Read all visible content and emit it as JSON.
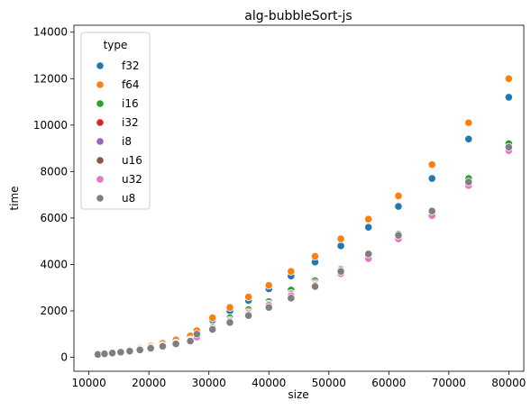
{
  "chart_data": {
    "type": "scatter",
    "title": "alg-bubbleSort-js",
    "xlabel": "size",
    "ylabel": "time",
    "xlim": [
      7500,
      82500
    ],
    "ylim": [
      -600,
      14300
    ],
    "x_ticks": [
      10000,
      20000,
      30000,
      40000,
      50000,
      60000,
      70000,
      80000
    ],
    "y_ticks": [
      0,
      2000,
      4000,
      6000,
      8000,
      10000,
      12000,
      14000
    ],
    "grid": false,
    "legend": {
      "title": "type",
      "placement": "top-left"
    },
    "colors": {
      "f32": "#1f77b4",
      "f64": "#ff7f0e",
      "i16": "#2ca02c",
      "i32": "#d62728",
      "i8": "#9467bd",
      "u16": "#8c564b",
      "u32": "#e377c2",
      "u8": "#7f7f7f"
    },
    "x": [
      11500,
      12600,
      13900,
      15300,
      16800,
      18500,
      20300,
      22300,
      24500,
      26900,
      28000,
      30600,
      33500,
      36600,
      40000,
      43700,
      47700,
      52000,
      56600,
      61600,
      67200,
      73300,
      80000
    ],
    "series": [
      {
        "name": "f32",
        "values": [
          135,
          165,
          205,
          250,
          305,
          370,
          455,
          560,
          680,
          830,
          1000,
          1600,
          2000,
          2450,
          2950,
          3500,
          4100,
          4800,
          5600,
          6500,
          7700,
          9400,
          11200
        ]
      },
      {
        "name": "f64",
        "values": [
          140,
          170,
          210,
          255,
          320,
          390,
          480,
          600,
          750,
          920,
          1150,
          1700,
          2150,
          2600,
          3100,
          3700,
          4350,
          5100,
          5950,
          6950,
          8300,
          10100,
          12000
        ]
      },
      {
        "name": "i16",
        "values": [
          135,
          160,
          195,
          235,
          285,
          345,
          420,
          510,
          620,
          760,
          920,
          1300,
          1700,
          2050,
          2400,
          2900,
          3300,
          3800,
          4400,
          5300,
          6300,
          7700,
          9200
        ]
      },
      {
        "name": "i32",
        "values": [
          130,
          160,
          190,
          230,
          280,
          340,
          410,
          500,
          610,
          740,
          900,
          1250,
          1600,
          1950,
          2300,
          2750,
          3200,
          3750,
          4350,
          5200,
          6200,
          7500,
          9000
        ]
      },
      {
        "name": "i8",
        "values": [
          130,
          155,
          190,
          230,
          275,
          335,
          405,
          495,
          600,
          730,
          880,
          1250,
          1600,
          1900,
          2300,
          2750,
          3150,
          3700,
          4300,
          5200,
          6200,
          7500,
          9000
        ]
      },
      {
        "name": "u16",
        "values": [
          130,
          155,
          190,
          225,
          275,
          330,
          400,
          490,
          600,
          720,
          880,
          1250,
          1600,
          1900,
          2250,
          2700,
          3100,
          3650,
          4300,
          5150,
          6100,
          7400,
          8900
        ]
      },
      {
        "name": "u32",
        "values": [
          130,
          155,
          185,
          225,
          270,
          325,
          395,
          485,
          590,
          710,
          870,
          1200,
          1550,
          1850,
          2250,
          2650,
          3100,
          3600,
          4250,
          5100,
          6100,
          7400,
          8900
        ]
      },
      {
        "name": "u8",
        "values": [
          125,
          150,
          185,
          220,
          265,
          320,
          390,
          475,
          580,
          700,
          1000,
          1200,
          1500,
          1800,
          2150,
          2550,
          3050,
          3700,
          4450,
          5250,
          6300,
          7550,
          9050
        ]
      }
    ]
  }
}
